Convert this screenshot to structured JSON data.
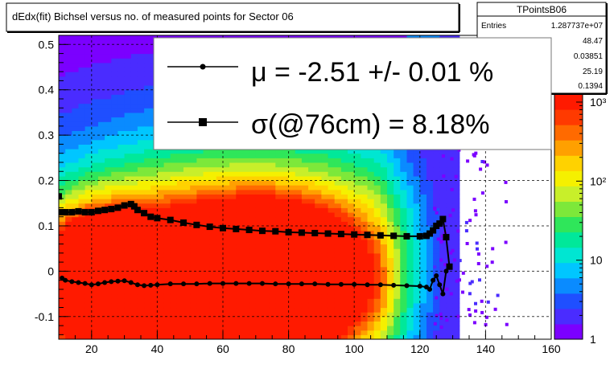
{
  "title": "dEdx(fit) Bichsel versus no. of measured points for Sector 06",
  "stats": {
    "name": "TPointsB06",
    "rows": [
      {
        "label": "Entries",
        "value": "1.287737e+07"
      },
      {
        "label": "",
        "value": "48.47"
      },
      {
        "label": "",
        "value": "0.03851"
      },
      {
        "label": "",
        "value": "25.19"
      },
      {
        "label": "",
        "value": "0.1394"
      }
    ]
  },
  "legend": {
    "mu_text": "μ  = -2.51 +/-  0.01 %",
    "sigma_text": "σ(@76cm) =  8.18%"
  },
  "colors": {
    "zscale": [
      "#7b00ff",
      "#4a2cff",
      "#1f4fff",
      "#0a8bff",
      "#00c6ff",
      "#00e6d2",
      "#00e89a",
      "#2fe65a",
      "#7de83a",
      "#c8ef2a",
      "#f5f000",
      "#ffd200",
      "#ffa000",
      "#ff6a00",
      "#ff3a00",
      "#ff1a00"
    ]
  },
  "chart_data": {
    "type": "heatmap",
    "title": "dEdx(fit) Bichsel versus no. of measured points for Sector 06",
    "xlim": [
      10,
      160
    ],
    "ylim": [
      -0.15,
      0.52
    ],
    "xticks": [
      20,
      40,
      60,
      80,
      100,
      120,
      140,
      160
    ],
    "yticks": [
      -0.1,
      0,
      0.1,
      0.2,
      0.3,
      0.4,
      0.5
    ],
    "ytick_labels": [
      "-0.1",
      "0",
      "0.1",
      "0.2",
      "0.3",
      "0.4",
      "0.5"
    ],
    "zscale": {
      "type": "log",
      "min": 1,
      "max": 1000,
      "labels": [
        "1",
        "10",
        "10²",
        "10³"
      ]
    },
    "grid": true,
    "series": [
      {
        "name": "σ(@76cm)",
        "marker": "square",
        "x": [
          11,
          12,
          14,
          16,
          18,
          20,
          22,
          24,
          26,
          28,
          30,
          32,
          33,
          34,
          36,
          38,
          40,
          44,
          48,
          52,
          56,
          60,
          64,
          68,
          72,
          76,
          80,
          84,
          88,
          92,
          96,
          100,
          104,
          108,
          112,
          116,
          120,
          122,
          123,
          124,
          125,
          126,
          127,
          128,
          129
        ],
        "y": [
          0.13,
          0.13,
          0.13,
          0.132,
          0.13,
          0.13,
          0.133,
          0.135,
          0.137,
          0.14,
          0.145,
          0.148,
          0.143,
          0.135,
          0.128,
          0.12,
          0.117,
          0.113,
          0.107,
          0.102,
          0.098,
          0.095,
          0.093,
          0.091,
          0.089,
          0.088,
          0.086,
          0.085,
          0.084,
          0.083,
          0.082,
          0.081,
          0.08,
          0.079,
          0.078,
          0.077,
          0.077,
          0.078,
          0.083,
          0.09,
          0.1,
          0.105,
          0.115,
          0.075,
          0.01
        ]
      },
      {
        "name": "μ",
        "marker": "circle",
        "x": [
          11,
          12,
          14,
          16,
          18,
          20,
          22,
          24,
          26,
          28,
          30,
          32,
          34,
          36,
          38,
          40,
          44,
          48,
          52,
          56,
          60,
          64,
          68,
          72,
          76,
          80,
          84,
          88,
          92,
          96,
          100,
          104,
          108,
          112,
          116,
          120,
          122,
          123,
          124,
          125,
          126,
          127,
          128
        ],
        "y": [
          -0.015,
          -0.02,
          -0.023,
          -0.025,
          -0.027,
          -0.03,
          -0.028,
          -0.025,
          -0.023,
          -0.022,
          -0.021,
          -0.025,
          -0.03,
          -0.032,
          -0.031,
          -0.03,
          -0.028,
          -0.028,
          -0.028,
          -0.027,
          -0.027,
          -0.027,
          -0.027,
          -0.027,
          -0.028,
          -0.028,
          -0.028,
          -0.028,
          -0.029,
          -0.029,
          -0.029,
          -0.03,
          -0.03,
          -0.031,
          -0.032,
          -0.033,
          -0.035,
          -0.04,
          -0.02,
          -0.01,
          -0.03,
          -0.05,
          0.0
        ]
      }
    ],
    "outlier_points": [
      {
        "x": 10,
        "y": 0.165
      }
    ]
  }
}
